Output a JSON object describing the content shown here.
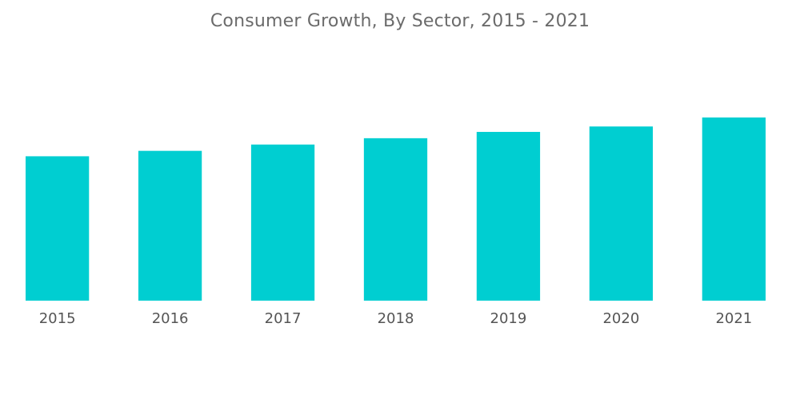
{
  "chart_data": {
    "type": "bar",
    "title": "Consumer Growth, By Sector, 2015 - 2021",
    "categories": [
      "2015",
      "2016",
      "2017",
      "2018",
      "2019",
      "2020",
      "2021"
    ],
    "values": [
      160,
      166,
      173,
      180,
      187,
      193,
      203
    ],
    "xlabel": "",
    "ylabel": "",
    "ylim": [
      0,
      280
    ],
    "grid": false,
    "legend": "none",
    "bar_color": "#00CED1"
  }
}
